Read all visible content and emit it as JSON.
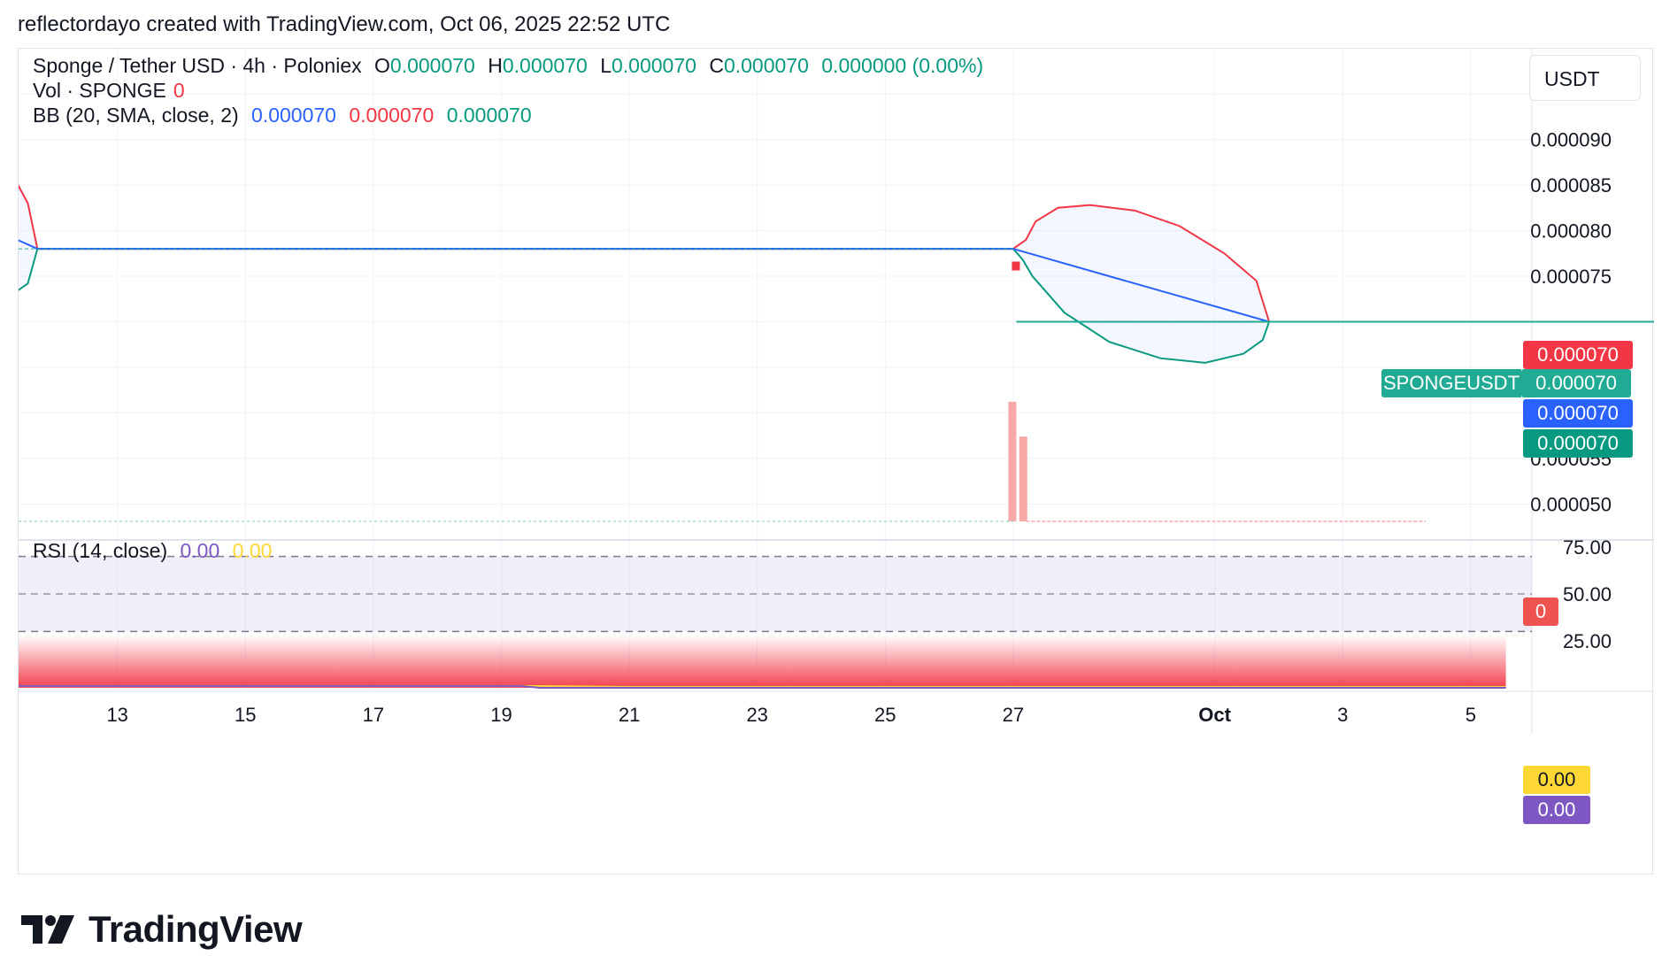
{
  "header": {
    "credit": "reflectordayo created with TradingView.com, Oct 06, 2025 22:52 UTC"
  },
  "legend": {
    "symbol": "Sponge / Tether USD · 4h · Poloniex",
    "o_label": "O",
    "o_value": "0.000070",
    "h_label": "H",
    "h_value": "0.000070",
    "l_label": "L",
    "l_value": "0.000070",
    "c_label": "C",
    "c_value": "0.000070",
    "change": "0.000000 (0.00%)",
    "vol_label": "Vol · SPONGE",
    "vol_value": "0",
    "bb_label": "BB (20, SMA, close, 2)",
    "bb_basis": "0.000070",
    "bb_upper": "0.000070",
    "bb_lower": "0.000070",
    "rsi_label": "RSI (14, close)",
    "rsi_value": "0.00",
    "rsi_ma_value": "0.00"
  },
  "currency": "USDT",
  "price_tags": {
    "bb_upper": "0.000070",
    "last": "0.000070",
    "symbol_label": "SPONGEUSDT",
    "bb_basis": "0.000070",
    "bb_lower": "0.000070",
    "volume": "0",
    "rsi_ma": "0.00",
    "rsi": "0.00"
  },
  "colors": {
    "up": "#089981",
    "down": "#f23645",
    "basis": "#2962ff",
    "rsi": "#7e57c2",
    "rsi_ma": "#fdd835",
    "teal_tag": "#22ab94"
  },
  "logo_text": "TradingView",
  "chart_data": [
    {
      "type": "line",
      "title": "Sponge / Tether USD · 4h · Poloniex",
      "x_ticks": [
        "13",
        "15",
        "17",
        "19",
        "21",
        "23",
        "25",
        "27",
        "Oct",
        "3",
        "5"
      ],
      "y_ticks": [
        "0.000095",
        "0.000090",
        "0.000085",
        "0.000080",
        "0.000075",
        "0.000060",
        "0.000055",
        "0.000050"
      ],
      "ylim": [
        4.82e-05,
        9.7e-05
      ],
      "x_domain": [
        11.4,
        37.3
      ],
      "series": [
        {
          "name": "BB upper",
          "x": [
            11.4,
            11.6,
            11.75,
            27.0,
            27.2,
            27.35,
            27.7,
            28.2,
            28.9,
            29.6,
            30.3,
            30.8,
            31.0
          ],
          "y": [
            8.56e-05,
            8.3e-05,
            7.8e-05,
            7.8e-05,
            7.9e-05,
            8.1e-05,
            8.25e-05,
            8.28e-05,
            8.22e-05,
            8.05e-05,
            7.75e-05,
            7.45e-05,
            7e-05
          ]
        },
        {
          "name": "BB basis",
          "x": [
            11.4,
            11.75,
            27.0,
            31.0,
            37.3
          ],
          "y": [
            7.91e-05,
            7.8e-05,
            7.8e-05,
            7e-05,
            7e-05
          ]
        },
        {
          "name": "BB lower",
          "x": [
            11.4,
            11.6,
            11.75,
            27.0,
            27.15,
            27.3,
            27.8,
            28.5,
            29.3,
            30.0,
            30.6,
            30.9,
            31.0
          ],
          "y": [
            7.32e-05,
            7.42e-05,
            7.8e-05,
            7.8e-05,
            7.68e-05,
            7.5e-05,
            7.1e-05,
            6.78e-05,
            6.6e-05,
            6.55e-05,
            6.65e-05,
            6.8e-05,
            7e-05
          ]
        },
        {
          "name": "Close",
          "x": [
            27.05,
            31.0,
            37.3
          ],
          "y": [
            7e-05,
            7e-05,
            7e-05
          ]
        }
      ]
    },
    {
      "type": "bar",
      "title": "Vol · SPONGE",
      "x": [
        26.98,
        27.15
      ],
      "values": [
        1.0,
        0.71
      ],
      "unit": "relative"
    },
    {
      "type": "line",
      "title": "RSI (14, close)",
      "y_ticks": [
        "75.00",
        "50.00",
        "25.00"
      ],
      "ylim": [
        0,
        85
      ],
      "series": [
        {
          "name": "RSI",
          "x": [
            11.4,
            19.3,
            19.6,
            21.5,
            34.7
          ],
          "y": [
            1.0,
            1.0,
            0.0,
            0.0,
            0.0
          ]
        },
        {
          "name": "RSI MA",
          "x": [
            11.4,
            19.3,
            21.0,
            34.7
          ],
          "y": [
            1.0,
            1.0,
            0.5,
            0.5
          ]
        }
      ],
      "bands": {
        "upper": 70,
        "middle": 50,
        "lower": 30
      }
    }
  ]
}
